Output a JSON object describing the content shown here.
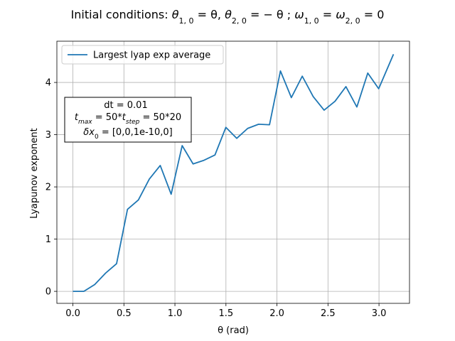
{
  "chart_data": {
    "type": "line",
    "title": {
      "prefix": "Initial conditions: ",
      "parts": [
        {
          "t": "θ",
          "sub": "1, 0",
          "rest": " = θ, "
        },
        {
          "t": "θ",
          "sub": "2, 0",
          "rest": " = − θ ; "
        },
        {
          "t": "ω",
          "sub": "1, 0",
          "rest": " = "
        },
        {
          "t": "ω",
          "sub": "2, 0",
          "rest": " = 0"
        }
      ]
    },
    "xlabel": "θ (rad)",
    "ylabel": "Lyapunov exponent",
    "xlim": [
      -0.157,
      3.299
    ],
    "ylim": [
      -0.23,
      4.79
    ],
    "xticks": [
      0.0,
      0.5,
      1.0,
      1.5,
      2.0,
      2.5,
      3.0
    ],
    "xtick_labels": [
      "0.0",
      "0.5",
      "1.0",
      "1.5",
      "2.0",
      "2.5",
      "3.0"
    ],
    "yticks": [
      0,
      1,
      2,
      3,
      4
    ],
    "ytick_labels": [
      "0",
      "1",
      "2",
      "3",
      "4"
    ],
    "grid": true,
    "legend_position": "top-left",
    "series": [
      {
        "name": "Largest lyap exp average",
        "color": "#1f77b4",
        "x": [
          0.0,
          0.107,
          0.214,
          0.321,
          0.428,
          0.535,
          0.642,
          0.749,
          0.856,
          0.963,
          1.071,
          1.178,
          1.285,
          1.392,
          1.499,
          1.606,
          1.713,
          1.82,
          1.927,
          2.034,
          2.141,
          2.248,
          2.355,
          2.462,
          2.569,
          2.676,
          2.783,
          2.89,
          2.997,
          3.142
        ],
        "y": [
          0.0,
          0.0,
          0.13,
          0.35,
          0.53,
          1.57,
          1.75,
          2.15,
          2.41,
          1.86,
          2.79,
          2.44,
          2.51,
          2.61,
          3.14,
          2.93,
          3.12,
          3.2,
          3.19,
          4.22,
          3.71,
          4.12,
          3.73,
          3.47,
          3.64,
          3.92,
          3.53,
          4.18,
          3.88,
          4.54
        ]
      }
    ],
    "annotation": {
      "line1": "dt = 0.01",
      "line2": {
        "t": "t",
        "sub1": "max",
        "mid": " = 50*",
        "t2": "t",
        "sub2": "step",
        "rest": " = 50*20"
      },
      "line3": {
        "t": "δx",
        "sub": "0",
        "rest": " = [0,0,1e-10,0]"
      }
    }
  }
}
